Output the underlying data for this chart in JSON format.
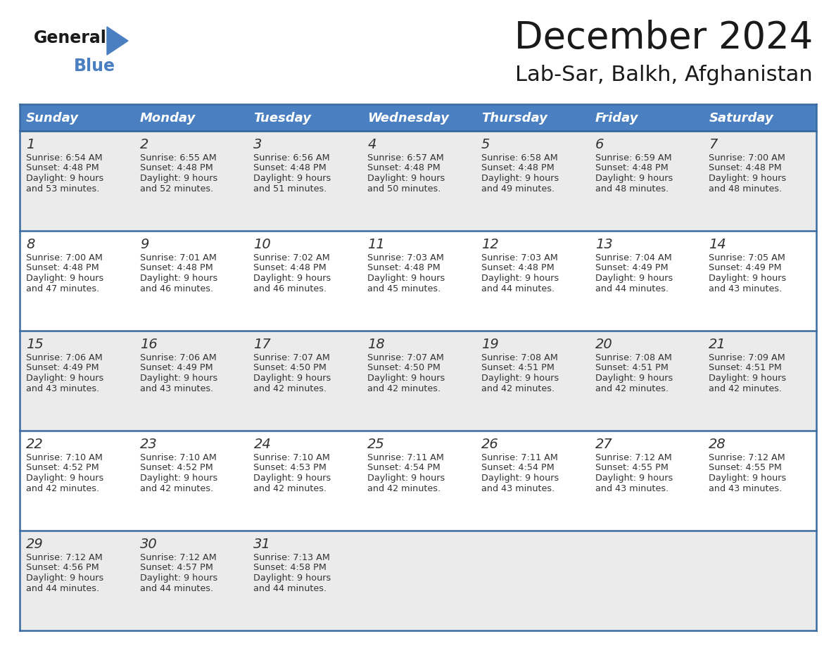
{
  "title": "December 2024",
  "subtitle": "Lab-Sar, Balkh, Afghanistan",
  "header_color": "#4a7fc1",
  "header_text_color": "#FFFFFF",
  "bg_color": "#FFFFFF",
  "row_even_color": "#EBEBEB",
  "row_odd_color": "#FFFFFF",
  "border_color": "#3a6aa0",
  "days_of_week": [
    "Sunday",
    "Monday",
    "Tuesday",
    "Wednesday",
    "Thursday",
    "Friday",
    "Saturday"
  ],
  "title_fontsize": 38,
  "subtitle_fontsize": 22,
  "header_fontsize": 13,
  "cell_fontsize": 9.2,
  "day_num_fontsize": 14,
  "calendar_data": [
    [
      {
        "day": 1,
        "sunrise": "6:54 AM",
        "sunset": "4:48 PM",
        "daylight_h": "9 hours",
        "daylight_m": "and 53 minutes."
      },
      {
        "day": 2,
        "sunrise": "6:55 AM",
        "sunset": "4:48 PM",
        "daylight_h": "9 hours",
        "daylight_m": "and 52 minutes."
      },
      {
        "day": 3,
        "sunrise": "6:56 AM",
        "sunset": "4:48 PM",
        "daylight_h": "9 hours",
        "daylight_m": "and 51 minutes."
      },
      {
        "day": 4,
        "sunrise": "6:57 AM",
        "sunset": "4:48 PM",
        "daylight_h": "9 hours",
        "daylight_m": "and 50 minutes."
      },
      {
        "day": 5,
        "sunrise": "6:58 AM",
        "sunset": "4:48 PM",
        "daylight_h": "9 hours",
        "daylight_m": "and 49 minutes."
      },
      {
        "day": 6,
        "sunrise": "6:59 AM",
        "sunset": "4:48 PM",
        "daylight_h": "9 hours",
        "daylight_m": "and 48 minutes."
      },
      {
        "day": 7,
        "sunrise": "7:00 AM",
        "sunset": "4:48 PM",
        "daylight_h": "9 hours",
        "daylight_m": "and 48 minutes."
      }
    ],
    [
      {
        "day": 8,
        "sunrise": "7:00 AM",
        "sunset": "4:48 PM",
        "daylight_h": "9 hours",
        "daylight_m": "and 47 minutes."
      },
      {
        "day": 9,
        "sunrise": "7:01 AM",
        "sunset": "4:48 PM",
        "daylight_h": "9 hours",
        "daylight_m": "and 46 minutes."
      },
      {
        "day": 10,
        "sunrise": "7:02 AM",
        "sunset": "4:48 PM",
        "daylight_h": "9 hours",
        "daylight_m": "and 46 minutes."
      },
      {
        "day": 11,
        "sunrise": "7:03 AM",
        "sunset": "4:48 PM",
        "daylight_h": "9 hours",
        "daylight_m": "and 45 minutes."
      },
      {
        "day": 12,
        "sunrise": "7:03 AM",
        "sunset": "4:48 PM",
        "daylight_h": "9 hours",
        "daylight_m": "and 44 minutes."
      },
      {
        "day": 13,
        "sunrise": "7:04 AM",
        "sunset": "4:49 PM",
        "daylight_h": "9 hours",
        "daylight_m": "and 44 minutes."
      },
      {
        "day": 14,
        "sunrise": "7:05 AM",
        "sunset": "4:49 PM",
        "daylight_h": "9 hours",
        "daylight_m": "and 43 minutes."
      }
    ],
    [
      {
        "day": 15,
        "sunrise": "7:06 AM",
        "sunset": "4:49 PM",
        "daylight_h": "9 hours",
        "daylight_m": "and 43 minutes."
      },
      {
        "day": 16,
        "sunrise": "7:06 AM",
        "sunset": "4:49 PM",
        "daylight_h": "9 hours",
        "daylight_m": "and 43 minutes."
      },
      {
        "day": 17,
        "sunrise": "7:07 AM",
        "sunset": "4:50 PM",
        "daylight_h": "9 hours",
        "daylight_m": "and 42 minutes."
      },
      {
        "day": 18,
        "sunrise": "7:07 AM",
        "sunset": "4:50 PM",
        "daylight_h": "9 hours",
        "daylight_m": "and 42 minutes."
      },
      {
        "day": 19,
        "sunrise": "7:08 AM",
        "sunset": "4:51 PM",
        "daylight_h": "9 hours",
        "daylight_m": "and 42 minutes."
      },
      {
        "day": 20,
        "sunrise": "7:08 AM",
        "sunset": "4:51 PM",
        "daylight_h": "9 hours",
        "daylight_m": "and 42 minutes."
      },
      {
        "day": 21,
        "sunrise": "7:09 AM",
        "sunset": "4:51 PM",
        "daylight_h": "9 hours",
        "daylight_m": "and 42 minutes."
      }
    ],
    [
      {
        "day": 22,
        "sunrise": "7:10 AM",
        "sunset": "4:52 PM",
        "daylight_h": "9 hours",
        "daylight_m": "and 42 minutes."
      },
      {
        "day": 23,
        "sunrise": "7:10 AM",
        "sunset": "4:52 PM",
        "daylight_h": "9 hours",
        "daylight_m": "and 42 minutes."
      },
      {
        "day": 24,
        "sunrise": "7:10 AM",
        "sunset": "4:53 PM",
        "daylight_h": "9 hours",
        "daylight_m": "and 42 minutes."
      },
      {
        "day": 25,
        "sunrise": "7:11 AM",
        "sunset": "4:54 PM",
        "daylight_h": "9 hours",
        "daylight_m": "and 42 minutes."
      },
      {
        "day": 26,
        "sunrise": "7:11 AM",
        "sunset": "4:54 PM",
        "daylight_h": "9 hours",
        "daylight_m": "and 43 minutes."
      },
      {
        "day": 27,
        "sunrise": "7:12 AM",
        "sunset": "4:55 PM",
        "daylight_h": "9 hours",
        "daylight_m": "and 43 minutes."
      },
      {
        "day": 28,
        "sunrise": "7:12 AM",
        "sunset": "4:55 PM",
        "daylight_h": "9 hours",
        "daylight_m": "and 43 minutes."
      }
    ],
    [
      {
        "day": 29,
        "sunrise": "7:12 AM",
        "sunset": "4:56 PM",
        "daylight_h": "9 hours",
        "daylight_m": "and 44 minutes."
      },
      {
        "day": 30,
        "sunrise": "7:12 AM",
        "sunset": "4:57 PM",
        "daylight_h": "9 hours",
        "daylight_m": "and 44 minutes."
      },
      {
        "day": 31,
        "sunrise": "7:13 AM",
        "sunset": "4:58 PM",
        "daylight_h": "9 hours",
        "daylight_m": "and 44 minutes."
      },
      null,
      null,
      null,
      null
    ]
  ]
}
